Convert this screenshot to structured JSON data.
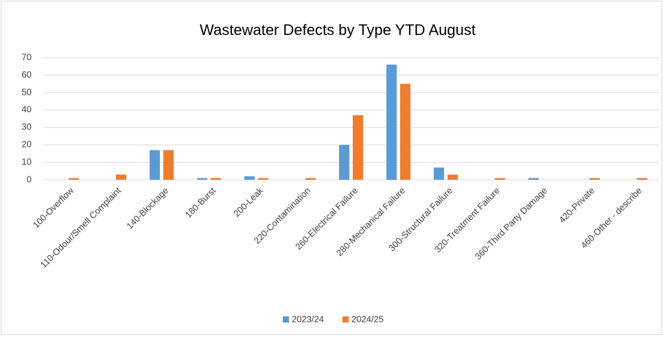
{
  "chart_data": {
    "type": "bar",
    "title": "Wastewater Defects by Type YTD August",
    "categories": [
      "100-Overflow",
      "110-Odour/Smell Complaint",
      "140-Blockage",
      "180-Burst",
      "200-Leak",
      "220-Contamination",
      "260-Electrical Failure",
      "280-Mechanical Failure",
      "300-Structural Failure",
      "320-Treatment Failure",
      "360-Third Party Damage",
      "420-Private",
      "460-Other - describe"
    ],
    "series": [
      {
        "name": "2023/24",
        "color": "#5b9bd5",
        "values": [
          0,
          0,
          17,
          1,
          2,
          0,
          20,
          66,
          7,
          0,
          1,
          0,
          0
        ]
      },
      {
        "name": "2024/25",
        "color": "#ed7d31",
        "values": [
          1,
          3,
          17,
          1,
          1,
          1,
          37,
          55,
          3,
          1,
          0,
          1,
          1
        ]
      }
    ],
    "ylim": [
      0,
      70
    ],
    "yticks": [
      0,
      10,
      20,
      30,
      40,
      50,
      60,
      70
    ],
    "grid": true,
    "legend": "bottom"
  }
}
